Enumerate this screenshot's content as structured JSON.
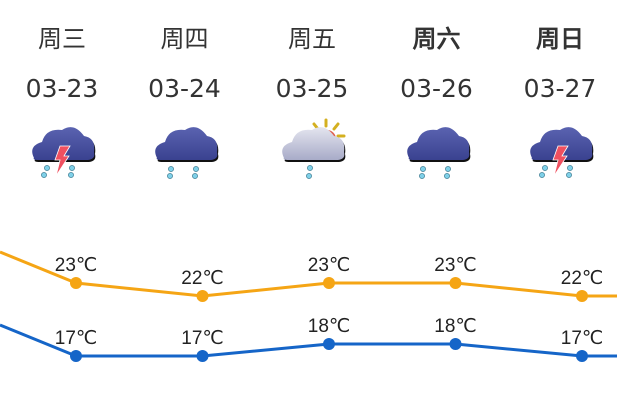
{
  "days": [
    {
      "weekday": "周三",
      "date": "03-23",
      "icon": "thunderstorm-rain-icon",
      "weekend": false,
      "high": 23,
      "low": 17
    },
    {
      "weekday": "周四",
      "date": "03-24",
      "icon": "rain-icon",
      "weekend": false,
      "high": 22,
      "low": 17
    },
    {
      "weekday": "周五",
      "date": "03-25",
      "icon": "partly-cloudy-rain-icon",
      "weekend": false,
      "high": 23,
      "low": 18
    },
    {
      "weekday": "周六",
      "date": "03-26",
      "icon": "rain-icon",
      "weekend": true,
      "high": 23,
      "low": 18
    },
    {
      "weekday": "周日",
      "date": "03-27",
      "icon": "thunderstorm-rain-icon",
      "weekend": true,
      "high": 22,
      "low": 17
    }
  ],
  "unit": "℃",
  "colors": {
    "high": "#f5a515",
    "low": "#1565c8",
    "cloud": "#3a4290",
    "light_cloud": "#c7c9dc",
    "bolt": "#f05060",
    "rain": "#7fd0e8",
    "sun": "#e06050"
  }
}
